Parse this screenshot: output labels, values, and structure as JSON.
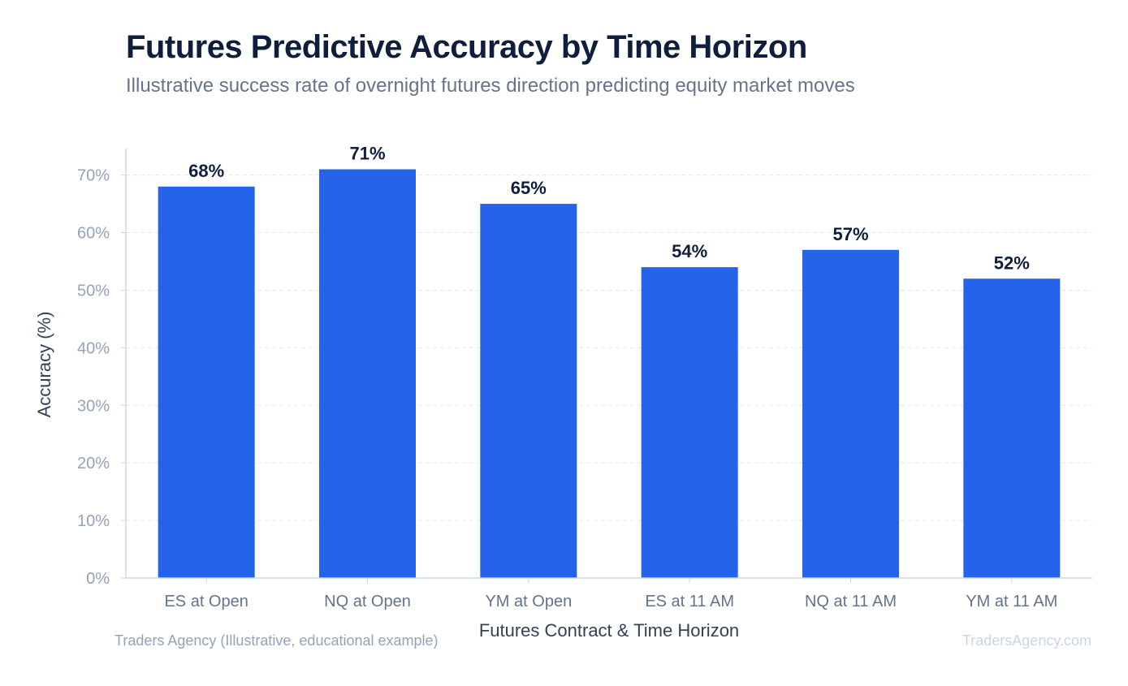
{
  "header": {
    "title": "Futures Predictive Accuracy by Time Horizon",
    "subtitle": "Illustrative success rate of overnight futures direction predicting equity market moves"
  },
  "footer": {
    "source": "Traders Agency (Illustrative, educational example)",
    "watermark": "TradersAgency.com"
  },
  "colors": {
    "bar": "#2563eb",
    "grid": "#e5e7eb",
    "axis": "#cbd5e1"
  },
  "chart_data": {
    "type": "bar",
    "title": "Futures Predictive Accuracy by Time Horizon",
    "subtitle": "Illustrative success rate of overnight futures direction predicting equity market moves",
    "xlabel": "Futures Contract & Time Horizon",
    "ylabel": "Accuracy (%)",
    "categories": [
      "ES at Open",
      "NQ at Open",
      "YM at Open",
      "ES at 11 AM",
      "NQ at 11 AM",
      "YM at 11 AM"
    ],
    "values": [
      68,
      71,
      65,
      54,
      57,
      52
    ],
    "value_labels": [
      "68%",
      "71%",
      "65%",
      "54%",
      "57%",
      "52%"
    ],
    "yticks": [
      0,
      10,
      20,
      30,
      40,
      50,
      60,
      70
    ],
    "ytick_labels": [
      "0%",
      "10%",
      "20%",
      "30%",
      "40%",
      "50%",
      "60%",
      "70%"
    ],
    "ylim": [
      0,
      74.6
    ],
    "grid": true,
    "legend": "none"
  }
}
